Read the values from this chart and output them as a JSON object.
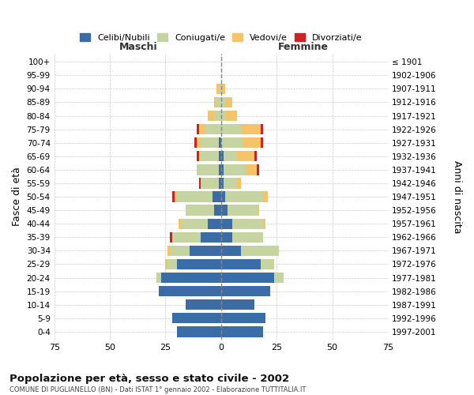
{
  "age_groups": [
    "0-4",
    "5-9",
    "10-14",
    "15-19",
    "20-24",
    "25-29",
    "30-34",
    "35-39",
    "40-44",
    "45-49",
    "50-54",
    "55-59",
    "60-64",
    "65-69",
    "70-74",
    "75-79",
    "80-84",
    "85-89",
    "90-94",
    "95-99",
    "100+"
  ],
  "birth_years": [
    "1997-2001",
    "1992-1996",
    "1987-1991",
    "1982-1986",
    "1977-1981",
    "1972-1976",
    "1967-1971",
    "1962-1966",
    "1957-1961",
    "1952-1956",
    "1947-1951",
    "1942-1946",
    "1937-1941",
    "1932-1936",
    "1927-1931",
    "1922-1926",
    "1917-1921",
    "1912-1916",
    "1907-1911",
    "1902-1906",
    "≤ 1901"
  ],
  "male": {
    "celibi": [
      20,
      22,
      16,
      28,
      27,
      20,
      14,
      9,
      6,
      3,
      4,
      1,
      1,
      1,
      1,
      0,
      0,
      0,
      0,
      0,
      0
    ],
    "coniugati": [
      0,
      0,
      0,
      0,
      2,
      4,
      9,
      13,
      12,
      13,
      16,
      8,
      10,
      8,
      8,
      7,
      3,
      2,
      1,
      0,
      0
    ],
    "vedovi": [
      0,
      0,
      0,
      0,
      0,
      1,
      1,
      0,
      1,
      0,
      1,
      0,
      0,
      1,
      2,
      3,
      3,
      1,
      1,
      0,
      0
    ],
    "divorziati": [
      0,
      0,
      0,
      0,
      0,
      0,
      0,
      1,
      0,
      0,
      1,
      1,
      0,
      1,
      1,
      1,
      0,
      0,
      0,
      0,
      0
    ]
  },
  "female": {
    "nubili": [
      19,
      20,
      15,
      22,
      24,
      18,
      9,
      5,
      5,
      3,
      2,
      1,
      1,
      1,
      0,
      0,
      0,
      0,
      0,
      0,
      0
    ],
    "coniugate": [
      0,
      0,
      0,
      0,
      4,
      6,
      17,
      14,
      14,
      13,
      17,
      6,
      10,
      6,
      10,
      9,
      2,
      2,
      0,
      0,
      0
    ],
    "vedove": [
      0,
      0,
      0,
      0,
      0,
      0,
      0,
      0,
      1,
      1,
      2,
      2,
      5,
      8,
      8,
      9,
      5,
      3,
      2,
      0,
      0
    ],
    "divorziate": [
      0,
      0,
      0,
      0,
      0,
      0,
      0,
      0,
      0,
      0,
      0,
      0,
      1,
      1,
      1,
      1,
      0,
      0,
      0,
      0,
      0
    ]
  },
  "colors": {
    "celibi": "#3a6ca8",
    "coniugati": "#c5d4a0",
    "vedovi": "#f5c469",
    "divorziati": "#cc2222"
  },
  "title": "Popolazione per età, sesso e stato civile - 2002",
  "subtitle": "COMUNE DI PUGLIANELLO (BN) - Dati ISTAT 1° gennaio 2002 - Elaborazione TUTTITALIA.IT",
  "ylabel": "Fasce di età",
  "ylabel_right": "Anni di nascita",
  "xlabel_maschi": "Maschi",
  "xlabel_femmine": "Femmine",
  "xlim": 75,
  "legend_labels": [
    "Celibi/Nubili",
    "Coniugati/e",
    "Vedovi/e",
    "Divorziati/e"
  ],
  "bg_color": "#ffffff",
  "grid_color": "#cccccc"
}
